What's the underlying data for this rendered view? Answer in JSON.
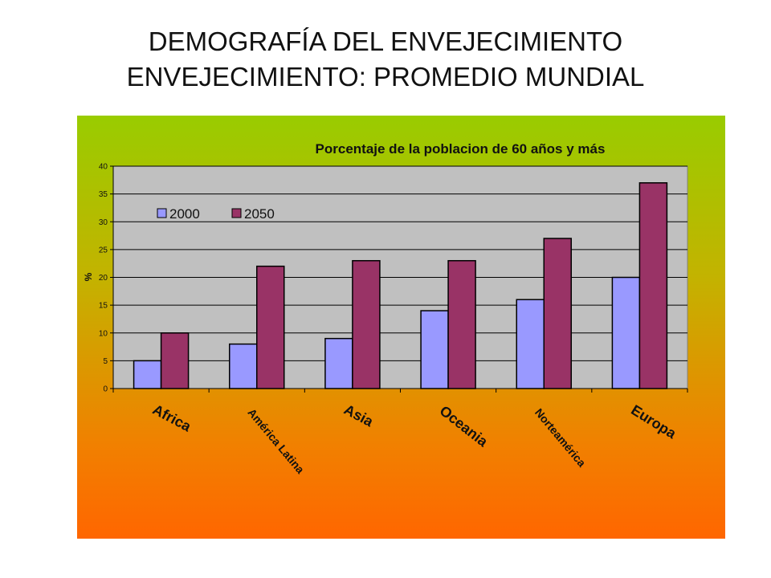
{
  "slide": {
    "title_line1": "DEMOGRAFÍA DEL ENVEJECIMIENTO",
    "title_line2": "ENVEJECIMIENTO: PROMEDIO MUNDIAL"
  },
  "chart_data": {
    "type": "bar",
    "title": "Porcentaje de la poblacion de 60 años y más",
    "ylabel": "%",
    "xlabel": "",
    "categories": [
      "Africa",
      "América Latina",
      "Asia",
      "Oceania",
      "Norteamérica",
      "Europa"
    ],
    "series": [
      {
        "name": "2000",
        "color": "#9999ff",
        "values": [
          5,
          8,
          9,
          14,
          16,
          20
        ]
      },
      {
        "name": "2050",
        "color": "#993366",
        "values": [
          10,
          22,
          23,
          23,
          27,
          37
        ]
      }
    ],
    "ylim": [
      0,
      40
    ],
    "yticks": [
      0,
      5,
      10,
      15,
      20,
      25,
      30,
      35,
      40
    ],
    "grid": true,
    "plot_background": "#c0c0c0",
    "legend_position": "top-left"
  }
}
